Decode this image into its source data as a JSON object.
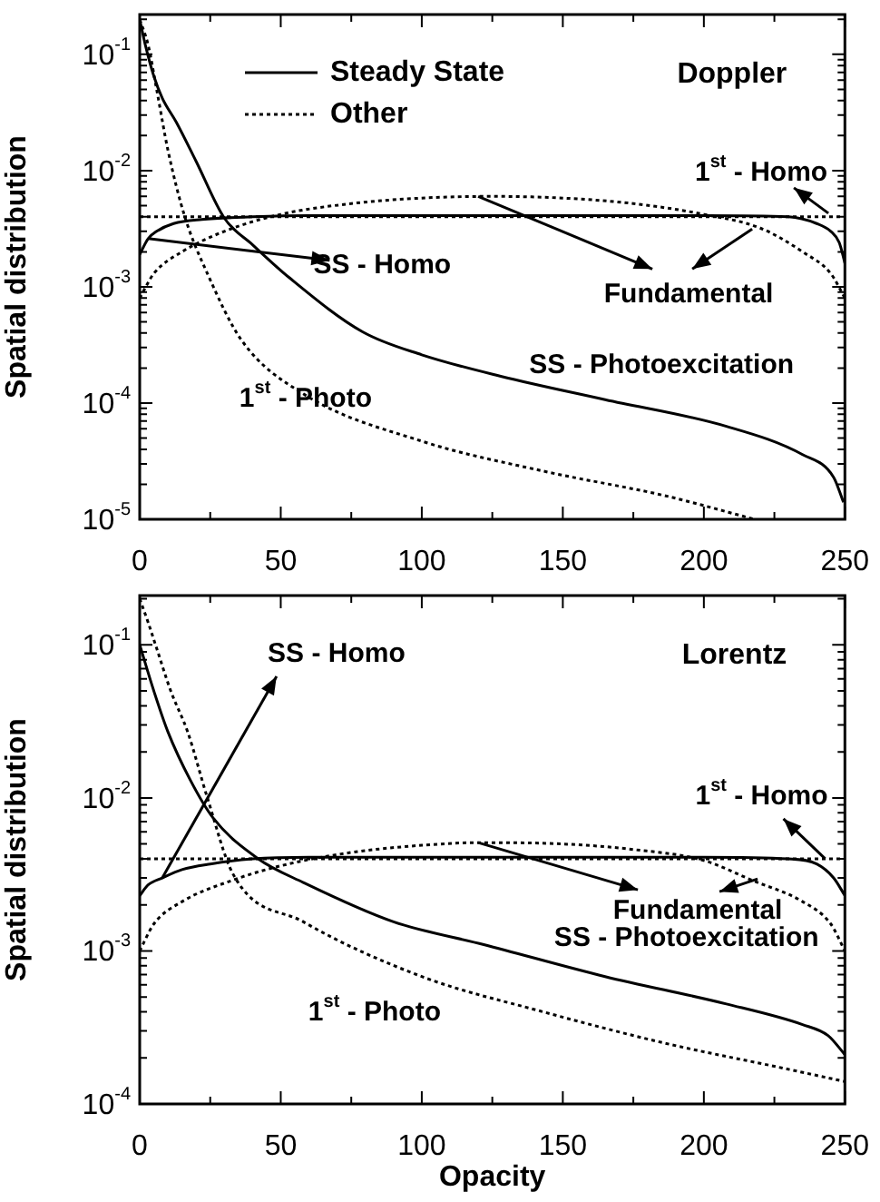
{
  "chart_data": [
    {
      "type": "line",
      "title": "Doppler",
      "ylabel": "Spatial distribution",
      "log": "y",
      "legend": "top left",
      "xlim": [
        0,
        250
      ],
      "xticks": [
        0,
        {
          "value": 25,
          "label": null
        },
        50,
        {
          "value": 75,
          "label": null
        },
        100,
        {
          "value": 125,
          "label": null
        },
        150,
        {
          "value": 175,
          "label": null
        },
        200,
        {
          "value": 225,
          "label": null
        },
        250
      ],
      "ylim": [
        1e-05,
        0.22
      ],
      "yticks": [
        {
          "value": 1e-05,
          "label": "10$^{-5}$"
        },
        {
          "value": 2e-05,
          "label": null
        },
        {
          "value": 3e-05,
          "label": null
        },
        {
          "value": 4e-05,
          "label": null
        },
        {
          "value": 5e-05,
          "label": null
        },
        {
          "value": 6e-05,
          "label": null
        },
        {
          "value": 7e-05,
          "label": null
        },
        {
          "value": 8e-05,
          "label": null
        },
        {
          "value": 9e-05,
          "label": null
        },
        {
          "value": 0.0001,
          "label": "10$^{-4}$"
        },
        {
          "value": 0.0002,
          "label": null
        },
        {
          "value": 0.0003,
          "label": null
        },
        {
          "value": 0.0004,
          "label": null
        },
        {
          "value": 0.0005,
          "label": null
        },
        {
          "value": 0.0006,
          "label": null
        },
        {
          "value": 0.0007,
          "label": null
        },
        {
          "value": 0.0008,
          "label": null
        },
        {
          "value": 0.0009,
          "label": null
        },
        {
          "value": 0.001,
          "label": "10$^{-3}$"
        },
        {
          "value": 0.002,
          "label": null
        },
        {
          "value": 0.003,
          "label": null
        },
        {
          "value": 0.004,
          "label": null
        },
        {
          "value": 0.005,
          "label": null
        },
        {
          "value": 0.006,
          "label": null
        },
        {
          "value": 0.007,
          "label": null
        },
        {
          "value": 0.008,
          "label": null
        },
        {
          "value": 0.009,
          "label": null
        },
        {
          "value": 0.01,
          "label": "10$^{-2}$"
        },
        {
          "value": 0.02,
          "label": null
        },
        {
          "value": 0.03,
          "label": null
        },
        {
          "value": 0.04,
          "label": null
        },
        {
          "value": 0.05,
          "label": null
        },
        {
          "value": 0.06,
          "label": null
        },
        {
          "value": 0.07,
          "label": null
        },
        {
          "value": 0.08,
          "label": null
        },
        {
          "value": 0.09,
          "label": null
        },
        {
          "value": 0.1,
          "label": "10$^{-1}$"
        },
        {
          "value": 0.2,
          "label": null
        }
      ],
      "series": [
        {
          "name": "Steady State",
          "color": "#000000",
          "line_style": "solid",
          "x": [
            0,
            2,
            5,
            8,
            13,
            20,
            30,
            40,
            53,
            79,
            100,
            128,
            165,
            208,
            235,
            246,
            249.5
          ],
          "values": [
            0.2,
            0.12,
            0.065,
            0.042,
            0.026,
            0.012,
            0.0039,
            0.0023,
            0.0012,
            0.00041,
            0.00026,
            0.00017,
            0.000107,
            6.3e-05,
            3.6e-05,
            2.3e-05,
            1.4e-05
          ]
        },
        {
          "name": "Other",
          "color": "#000000",
          "line_style": "dotted",
          "x": [
            0,
            3,
            6,
            10,
            16,
            24,
            36,
            58,
            100,
            143,
            186,
            218
          ],
          "values": [
            0.2,
            0.12,
            0.05,
            0.015,
            0.004,
            0.0013,
            0.00035,
            0.00012,
            4.7e-05,
            2.6e-05,
            1.6e-05,
            1e-05
          ]
        },
        {
          "color": "#000000",
          "line_style": "solid",
          "x": [
            0,
            3,
            6,
            12,
            22,
            40,
            60,
            125,
            200,
            230,
            240,
            245,
            248,
            250
          ],
          "values": [
            0.0019,
            0.0026,
            0.003,
            0.0035,
            0.0038,
            0.004,
            0.0041,
            0.0041,
            0.0041,
            0.004,
            0.0035,
            0.003,
            0.0024,
            0.0016
          ]
        },
        {
          "color": "#000000",
          "line_style": "dotted",
          "x": [
            0,
            250
          ],
          "values": [
            0.004,
            0.004
          ]
        },
        {
          "color": "#000000",
          "line_style": "dotted",
          "x": [
            0,
            5,
            15,
            30,
            50,
            75,
            100,
            125,
            150,
            175,
            200,
            220,
            235,
            245,
            250
          ],
          "values": [
            0.0008,
            0.0013,
            0.002,
            0.003,
            0.0042,
            0.0052,
            0.0058,
            0.006,
            0.0058,
            0.0052,
            0.0042,
            0.0032,
            0.002,
            0.0013,
            0.0008
          ]
        }
      ],
      "annotations": [
        {
          "text": "SS - Homo",
          "x": 3,
          "y": 0.0026
        },
        {
          "text": "Fundamental",
          "x": 120,
          "y": 0.006
        },
        {
          "text": "1$^{st}$ - Homo",
          "x": 248,
          "y": 0.004
        },
        {
          "text": "SS - Photoexcitation",
          "x": 185,
          "y": 8.5e-05
        },
        {
          "text": "1$^{st}$ - Photo",
          "x": 100,
          "y": 4.7e-05
        }
      ]
    },
    {
      "type": "line",
      "title": "Lorentz",
      "xlabel": "Opacity",
      "ylabel": "Spatial distribution",
      "log": "y",
      "xlim": [
        0,
        250
      ],
      "xticks": [
        0,
        {
          "value": 25,
          "label": null
        },
        50,
        {
          "value": 75,
          "label": null
        },
        100,
        {
          "value": 125,
          "label": null
        },
        150,
        {
          "value": 175,
          "label": null
        },
        200,
        {
          "value": 225,
          "label": null
        },
        250
      ],
      "ylim": [
        0.0001,
        0.21
      ],
      "yticks": [
        {
          "value": 0.0001,
          "label": "10$^{-4}$"
        },
        {
          "value": 0.0002,
          "label": null
        },
        {
          "value": 0.0003,
          "label": null
        },
        {
          "value": 0.0004,
          "label": null
        },
        {
          "value": 0.0005,
          "label": null
        },
        {
          "value": 0.0006,
          "label": null
        },
        {
          "value": 0.0007,
          "label": null
        },
        {
          "value": 0.0008,
          "label": null
        },
        {
          "value": 0.0009,
          "label": null
        },
        {
          "value": 0.001,
          "label": "10$^{-3}$"
        },
        {
          "value": 0.002,
          "label": null
        },
        {
          "value": 0.003,
          "label": null
        },
        {
          "value": 0.004,
          "label": null
        },
        {
          "value": 0.005,
          "label": null
        },
        {
          "value": 0.006,
          "label": null
        },
        {
          "value": 0.007,
          "label": null
        },
        {
          "value": 0.008,
          "label": null
        },
        {
          "value": 0.009,
          "label": null
        },
        {
          "value": 0.01,
          "label": "10$^{-2}$"
        },
        {
          "value": 0.02,
          "label": null
        },
        {
          "value": 0.03,
          "label": null
        },
        {
          "value": 0.04,
          "label": null
        },
        {
          "value": 0.05,
          "label": null
        },
        {
          "value": 0.06,
          "label": null
        },
        {
          "value": 0.07,
          "label": null
        },
        {
          "value": 0.08,
          "label": null
        },
        {
          "value": 0.09,
          "label": null
        },
        {
          "value": 0.1,
          "label": "10$^{-1}$"
        },
        {
          "value": 0.2,
          "label": null
        }
      ],
      "series": [
        {
          "color": "#000000",
          "line_style": "solid",
          "x": [
            0,
            5,
            10,
            18,
            26,
            42,
            58,
            90,
            122,
            165,
            208,
            235,
            244,
            250
          ],
          "values": [
            0.1,
            0.05,
            0.027,
            0.013,
            0.0074,
            0.004,
            0.0028,
            0.00155,
            0.0011,
            0.00068,
            0.00045,
            0.00033,
            0.00028,
            0.00021
          ]
        },
        {
          "color": "#000000",
          "line_style": "dotted",
          "x": [
            0,
            3,
            6,
            11,
            17,
            24,
            33,
            58,
            100,
            143,
            186,
            229,
            250
          ],
          "values": [
            0.2,
            0.14,
            0.095,
            0.05,
            0.027,
            0.01,
            0.0032,
            0.00155,
            0.00068,
            0.0004,
            0.00025,
            0.00017,
            0.00014
          ]
        },
        {
          "color": "#000000",
          "line_style": "solid",
          "x": [
            0,
            3,
            8,
            15,
            25,
            40,
            60,
            125,
            200,
            230,
            240,
            246,
            250
          ],
          "values": [
            0.0023,
            0.0027,
            0.003,
            0.0034,
            0.0037,
            0.004,
            0.0041,
            0.0041,
            0.0041,
            0.004,
            0.0037,
            0.003,
            0.0023
          ]
        },
        {
          "color": "#000000",
          "line_style": "dotted",
          "x": [
            0,
            250
          ],
          "values": [
            0.004,
            0.004
          ]
        },
        {
          "color": "#000000",
          "line_style": "dotted",
          "x": [
            0,
            5,
            15,
            33,
            50,
            75,
            100,
            120,
            150,
            175,
            200,
            217,
            235,
            245,
            250
          ],
          "values": [
            0.001,
            0.0015,
            0.0021,
            0.0029,
            0.0036,
            0.0044,
            0.0049,
            0.0051,
            0.005,
            0.0046,
            0.0039,
            0.0029,
            0.0021,
            0.0015,
            0.001
          ]
        }
      ],
      "annotations": [
        {
          "text": "SS - Homo",
          "x": 8,
          "y": 0.003
        },
        {
          "text": "Fundamental",
          "x": 120,
          "y": 0.0051
        },
        {
          "text": "1$^{st}$ - Homo",
          "x": 243,
          "y": 0.004
        },
        {
          "text": "SS - Photoexcitation",
          "x": 208,
          "y": 0.00045
        },
        {
          "text": "1$^{st}$ - Photo",
          "x": 100,
          "y": 0.00068
        }
      ]
    }
  ]
}
